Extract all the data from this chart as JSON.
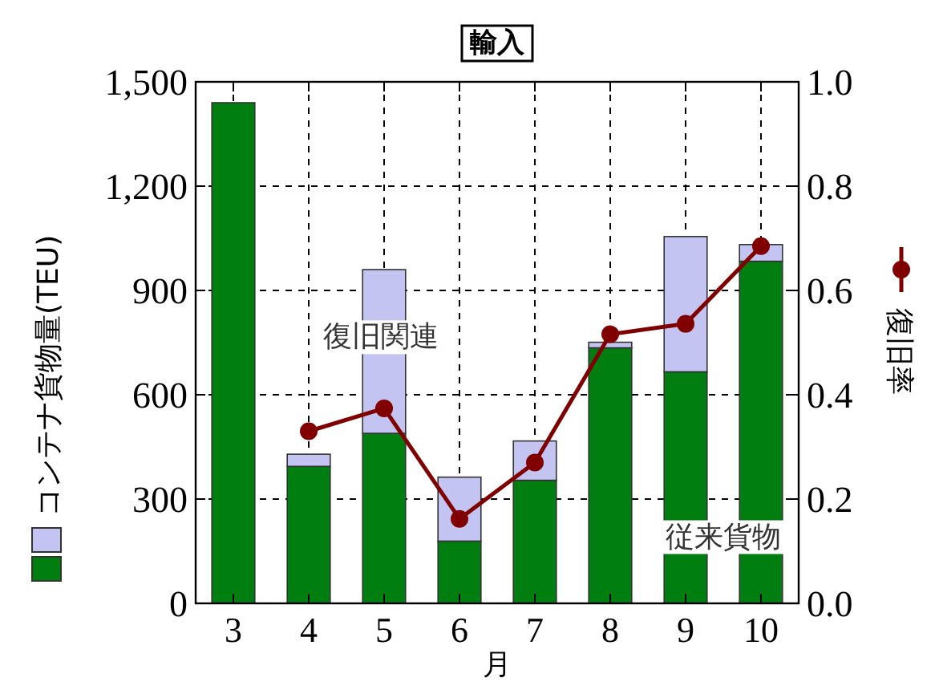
{
  "chart_data": {
    "type": "bar",
    "title": "輸入",
    "xlabel": "月",
    "ylabel": "コンテナ貨物量(TEU)",
    "categories": [
      "3",
      "4",
      "5",
      "6",
      "7",
      "8",
      "9",
      "10"
    ],
    "stacked": true,
    "series": [
      {
        "name": "従来貨物",
        "color": "#007f10",
        "values": [
          1440,
          394,
          489,
          179,
          354,
          735,
          666,
          984
        ]
      },
      {
        "name": "復旧関連",
        "color": "#c4c4f2",
        "values": [
          0,
          35,
          471,
          184,
          113,
          16,
          389,
          48
        ]
      },
      {
        "name": "復旧率",
        "type": "line",
        "axis": "y2",
        "color": "#800000",
        "marker": "circle",
        "values": [
          null,
          0.33,
          0.374,
          0.162,
          0.27,
          0.516,
          0.536,
          0.685
        ]
      }
    ],
    "ylim": [
      0,
      1500
    ],
    "yticks": [
      {
        "value": 0,
        "label": "0"
      },
      {
        "value": 300,
        "label": "300"
      },
      {
        "value": 600,
        "label": "600"
      },
      {
        "value": 900,
        "label": "900"
      },
      {
        "value": 1200,
        "label": "1,200"
      },
      {
        "value": 1500,
        "label": "1,500"
      }
    ],
    "y2lim": [
      0,
      1
    ],
    "y2ticks": [
      {
        "value": 0,
        "label": "0.0"
      },
      {
        "value": 0.2,
        "label": "0.2"
      },
      {
        "value": 0.4,
        "label": "0.4"
      },
      {
        "value": 0.6,
        "label": "0.6"
      },
      {
        "value": 0.8,
        "label": "0.8"
      },
      {
        "value": 1,
        "label": "1.0"
      }
    ],
    "grid": true,
    "legend": "right"
  }
}
